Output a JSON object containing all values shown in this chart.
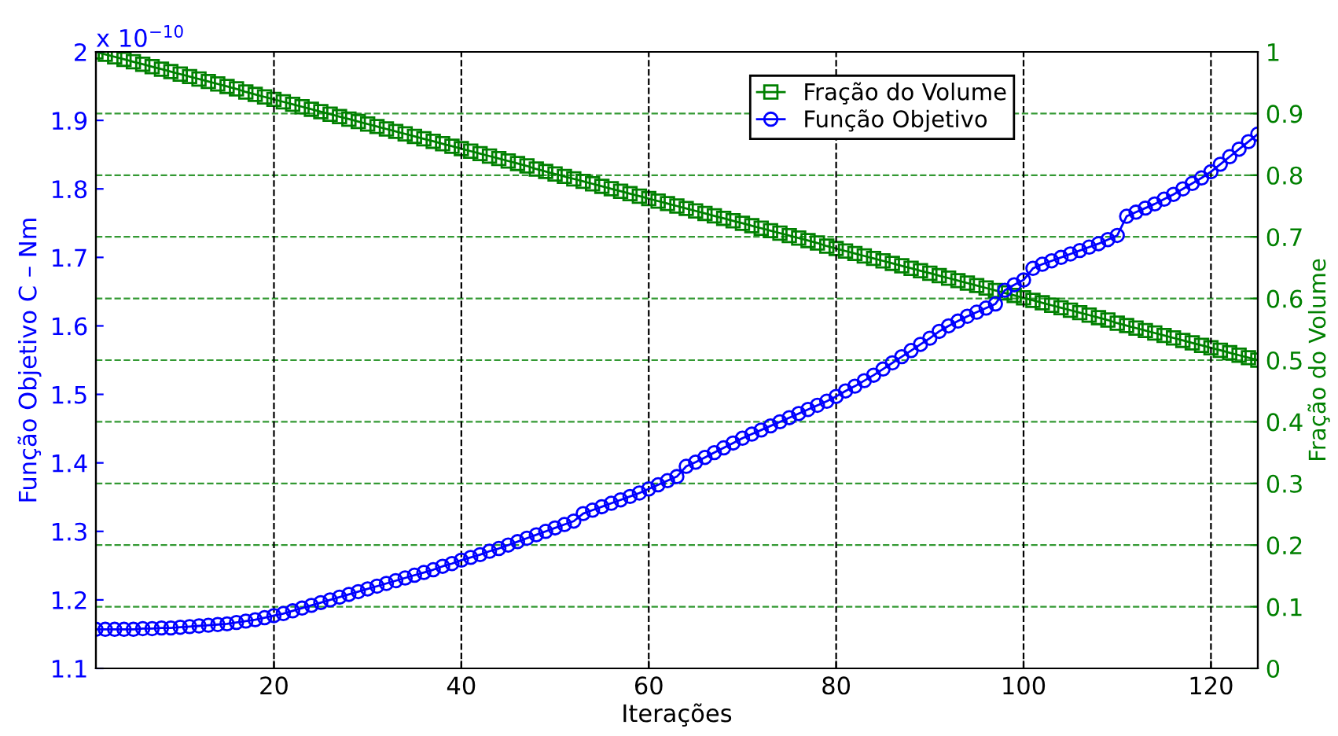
{
  "chart_data": {
    "type": "line",
    "xlabel": "Iterações",
    "ylabel": "Função Objetivo C – Nm",
    "y2label": "Fração do Volume",
    "annotations": [
      "x 10$^{−10}$"
    ],
    "x": [
      1,
      2,
      3,
      4,
      5,
      6,
      7,
      8,
      9,
      10,
      11,
      12,
      13,
      14,
      15,
      16,
      17,
      18,
      19,
      20,
      21,
      22,
      23,
      24,
      25,
      26,
      27,
      28,
      29,
      30,
      31,
      32,
      33,
      34,
      35,
      36,
      37,
      38,
      39,
      40,
      41,
      42,
      43,
      44,
      45,
      46,
      47,
      48,
      49,
      50,
      51,
      52,
      53,
      54,
      55,
      56,
      57,
      58,
      59,
      60,
      61,
      62,
      63,
      64,
      65,
      66,
      67,
      68,
      69,
      70,
      71,
      72,
      73,
      74,
      75,
      76,
      77,
      78,
      79,
      80,
      81,
      82,
      83,
      84,
      85,
      86,
      87,
      88,
      89,
      90,
      91,
      92,
      93,
      94,
      95,
      96,
      97,
      98,
      99,
      100,
      101,
      102,
      103,
      104,
      105,
      106,
      107,
      108,
      109,
      110,
      111,
      112,
      113,
      114,
      115,
      116,
      117,
      118,
      119,
      120,
      121,
      122,
      123,
      124,
      125
    ],
    "series": [
      {
        "name": "Fração do Volume",
        "color": "#008000",
        "axis": "y2",
        "marker": "square",
        "values": [
          1.0,
          0.996,
          0.992,
          0.988,
          0.984,
          0.98,
          0.976,
          0.972,
          0.968,
          0.964,
          0.96,
          0.956,
          0.952,
          0.948,
          0.944,
          0.94,
          0.935,
          0.931,
          0.927,
          0.923,
          0.919,
          0.915,
          0.911,
          0.907,
          0.903,
          0.899,
          0.895,
          0.891,
          0.887,
          0.883,
          0.879,
          0.875,
          0.871,
          0.867,
          0.863,
          0.859,
          0.855,
          0.851,
          0.847,
          0.843,
          0.839,
          0.835,
          0.831,
          0.827,
          0.823,
          0.819,
          0.815,
          0.81,
          0.806,
          0.802,
          0.798,
          0.794,
          0.79,
          0.786,
          0.782,
          0.778,
          0.774,
          0.77,
          0.766,
          0.762,
          0.758,
          0.754,
          0.75,
          0.746,
          0.742,
          0.738,
          0.734,
          0.73,
          0.726,
          0.722,
          0.718,
          0.714,
          0.71,
          0.706,
          0.702,
          0.698,
          0.694,
          0.69,
          0.685,
          0.681,
          0.677,
          0.673,
          0.669,
          0.665,
          0.661,
          0.657,
          0.653,
          0.649,
          0.645,
          0.641,
          0.637,
          0.633,
          0.629,
          0.625,
          0.621,
          0.617,
          0.613,
          0.609,
          0.605,
          0.601,
          0.597,
          0.593,
          0.589,
          0.585,
          0.581,
          0.577,
          0.573,
          0.569,
          0.565,
          0.56,
          0.556,
          0.552,
          0.548,
          0.544,
          0.54,
          0.536,
          0.532,
          0.528,
          0.524,
          0.52,
          0.516,
          0.512,
          0.508,
          0.504,
          0.5
        ]
      },
      {
        "name": "Função Objetivo",
        "color": "#0000ff",
        "axis": "y",
        "marker": "circle",
        "values": [
          1.157,
          1.157,
          1.157,
          1.157,
          1.157,
          1.158,
          1.158,
          1.159,
          1.159,
          1.16,
          1.161,
          1.162,
          1.163,
          1.164,
          1.165,
          1.167,
          1.169,
          1.171,
          1.174,
          1.177,
          1.18,
          1.184,
          1.188,
          1.192,
          1.196,
          1.2,
          1.204,
          1.208,
          1.212,
          1.216,
          1.22,
          1.224,
          1.228,
          1.232,
          1.236,
          1.24,
          1.244,
          1.249,
          1.253,
          1.258,
          1.262,
          1.266,
          1.271,
          1.275,
          1.28,
          1.285,
          1.29,
          1.295,
          1.3,
          1.305,
          1.31,
          1.315,
          1.326,
          1.331,
          1.336,
          1.341,
          1.346,
          1.351,
          1.356,
          1.362,
          1.368,
          1.374,
          1.38,
          1.395,
          1.401,
          1.408,
          1.415,
          1.422,
          1.429,
          1.436,
          1.442,
          1.448,
          1.454,
          1.46,
          1.466,
          1.472,
          1.478,
          1.484,
          1.49,
          1.497,
          1.505,
          1.512,
          1.52,
          1.528,
          1.537,
          1.546,
          1.555,
          1.564,
          1.573,
          1.582,
          1.592,
          1.6,
          1.607,
          1.614,
          1.62,
          1.626,
          1.632,
          1.652,
          1.66,
          1.667,
          1.684,
          1.69,
          1.695,
          1.7,
          1.705,
          1.71,
          1.715,
          1.72,
          1.726,
          1.732,
          1.76,
          1.766,
          1.772,
          1.778,
          1.785,
          1.792,
          1.8,
          1.808,
          1.816,
          1.825,
          1.836,
          1.847,
          1.858,
          1.869,
          1.88
        ]
      }
    ],
    "xlim": [
      1,
      125
    ],
    "xticks": [
      20,
      40,
      60,
      80,
      100,
      120
    ],
    "ylim": [
      1.1,
      2
    ],
    "yticks": [
      1.1,
      1.2,
      1.3,
      1.4,
      1.5,
      1.6,
      1.7,
      1.8,
      1.9,
      2
    ],
    "y2lim": [
      0,
      1
    ],
    "y2ticks": [
      0,
      0.1,
      0.2,
      0.3,
      0.4,
      0.5,
      0.6,
      0.7,
      0.8,
      0.9,
      1
    ],
    "grid": true,
    "legend": "top right",
    "line_style": "solid"
  }
}
